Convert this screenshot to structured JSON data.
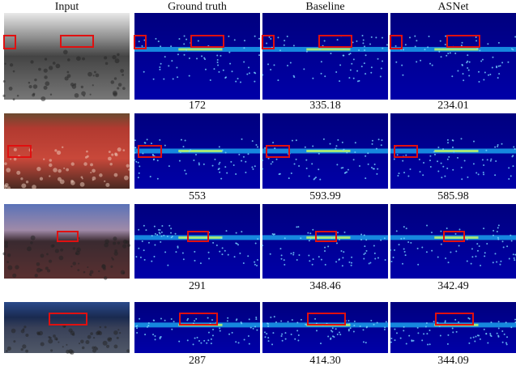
{
  "header": {
    "columns": [
      "Input",
      "Ground truth",
      "Baseline",
      "ASNet"
    ]
  },
  "rows": [
    {
      "counts": [
        "172",
        "335.18",
        "234.01"
      ]
    },
    {
      "counts": [
        "553",
        "593.99",
        "585.98"
      ]
    },
    {
      "counts": [
        "291",
        "348.46",
        "342.49"
      ]
    },
    {
      "counts": [
        "287",
        "414.30",
        "344.09"
      ]
    }
  ]
}
